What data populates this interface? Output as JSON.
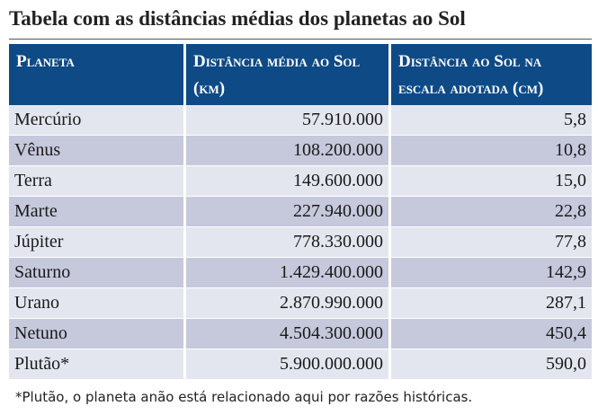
{
  "title": "Tabela com as distâncias médias dos planetas ao Sol",
  "table": {
    "headers": [
      "Planeta",
      "Distância média ao Sol (km)",
      "Distância ao Sol na escala adotada (cm)"
    ],
    "rows": [
      {
        "planet": "Mercúrio",
        "distance_km": "57.910.000",
        "scale_cm": "5,8"
      },
      {
        "planet": "Vênus",
        "distance_km": "108.200.000",
        "scale_cm": "10,8"
      },
      {
        "planet": "Terra",
        "distance_km": "149.600.000",
        "scale_cm": "15,0"
      },
      {
        "planet": "Marte",
        "distance_km": "227.940.000",
        "scale_cm": "22,8"
      },
      {
        "planet": "Júpiter",
        "distance_km": "778.330.000",
        "scale_cm": "77,8"
      },
      {
        "planet": "Saturno",
        "distance_km": "1.429.400.000",
        "scale_cm": "142,9"
      },
      {
        "planet": "Urano",
        "distance_km": "2.870.990.000",
        "scale_cm": "287,1"
      },
      {
        "planet": "Netuno",
        "distance_km": "4.504.300.000",
        "scale_cm": "450,4"
      },
      {
        "planet": "Plutão*",
        "distance_km": "5.900.000.000",
        "scale_cm": "590,0"
      }
    ]
  },
  "footnote": "*Plutão, o planeta anão está relacionado aqui por razões históricas.",
  "colors": {
    "header_bg": "#0e4a86",
    "row_light": "#e4e6ef",
    "row_dark": "#c6c9dc"
  }
}
